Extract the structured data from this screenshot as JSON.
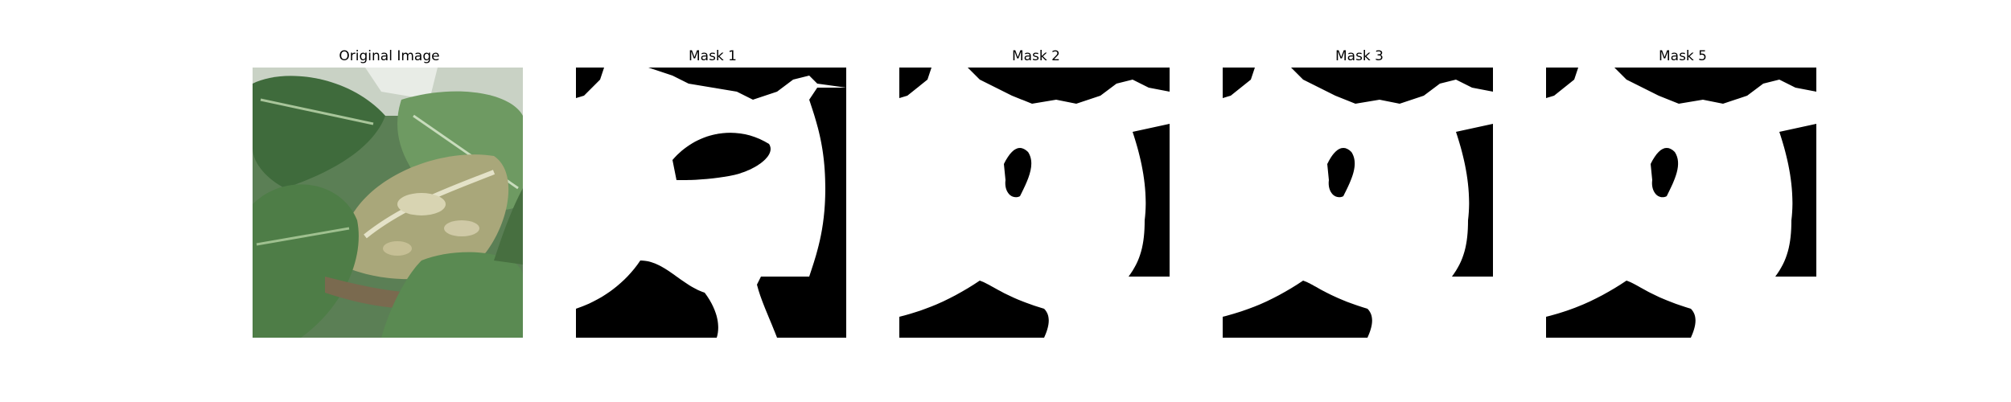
{
  "figure": {
    "panels": [
      {
        "title": "Original Image",
        "kind": "photo",
        "content": "leafy-green-plant-photo"
      },
      {
        "title": "Mask 1",
        "kind": "binary-mask"
      },
      {
        "title": "Mask 2",
        "kind": "binary-mask"
      },
      {
        "title": "Mask 3",
        "kind": "binary-mask"
      },
      {
        "title": "Mask 5",
        "kind": "binary-mask"
      }
    ],
    "colors": {
      "mask_foreground": "#ffffff",
      "mask_background": "#000000",
      "leaf_dark": "#3f6b3c",
      "leaf_light": "#7fa870",
      "background": "#ffffff"
    }
  }
}
